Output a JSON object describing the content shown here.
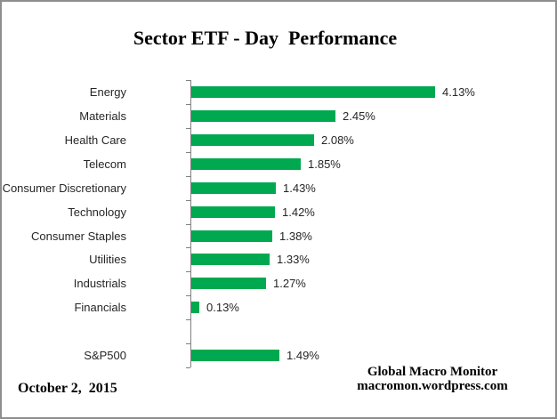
{
  "title": "Sector ETF - Day  Performance",
  "chart_data": {
    "type": "bar",
    "orientation": "horizontal",
    "title": "Sector ETF - Day  Performance",
    "categories": [
      "Energy",
      "Materials",
      "Health Care",
      "Telecom",
      "Consumer Discretionary",
      "Technology",
      "Consumer Staples",
      "Utilities",
      "Industrials",
      "Financials",
      "S&P500"
    ],
    "values": [
      4.13,
      2.45,
      2.08,
      1.85,
      1.43,
      1.42,
      1.38,
      1.33,
      1.27,
      0.13,
      1.49
    ],
    "value_labels": [
      "4.13%",
      "2.45%",
      "2.08%",
      "1.85%",
      "1.43%",
      "1.42%",
      "1.38%",
      "1.33%",
      "1.27%",
      "0.13%",
      "1.49%"
    ],
    "gap_before_last_category": true,
    "xlim": [
      0,
      4.6
    ],
    "grid": false,
    "legend": false,
    "xlabel": "",
    "ylabel": "",
    "bar_color": "#00A94F",
    "axis_color": "#808080",
    "label_color": "#262626"
  },
  "footer": {
    "date": "October 2,  2015",
    "brand_name": "Global Macro Monitor",
    "brand_url": "macromon.wordpress.com"
  }
}
